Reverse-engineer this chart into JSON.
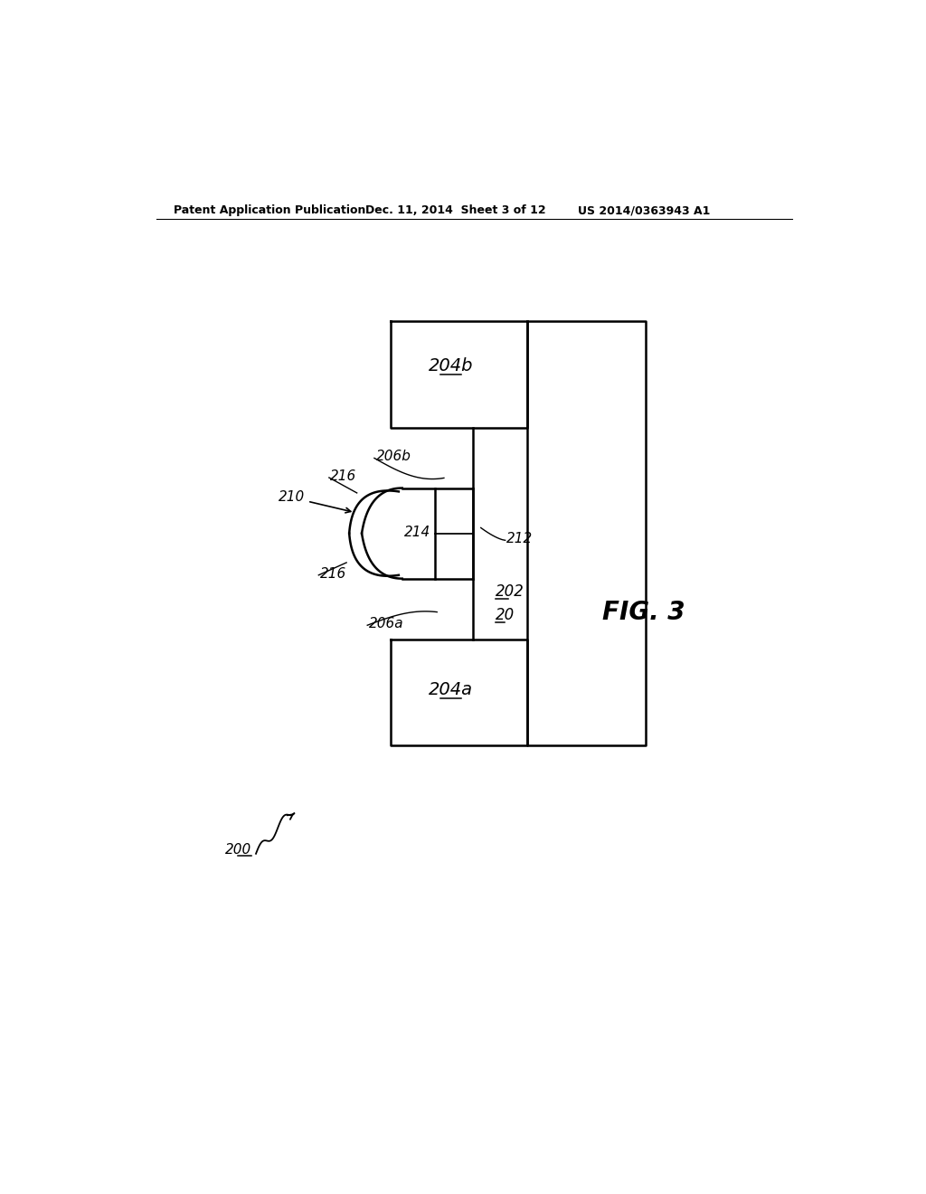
{
  "bg_color": "#ffffff",
  "header_left": "Patent Application Publication",
  "header_mid": "Dec. 11, 2014  Sheet 3 of 12",
  "header_right": "US 2014/0363943 A1",
  "fig_label": "FIG. 3",
  "label_200": "200",
  "label_20": "20",
  "label_202": "202",
  "label_204a": "204a",
  "label_204b": "204b",
  "label_206a": "206a",
  "label_206b": "206b",
  "label_210": "210",
  "label_212": "212",
  "label_214": "214",
  "label_216": "216"
}
